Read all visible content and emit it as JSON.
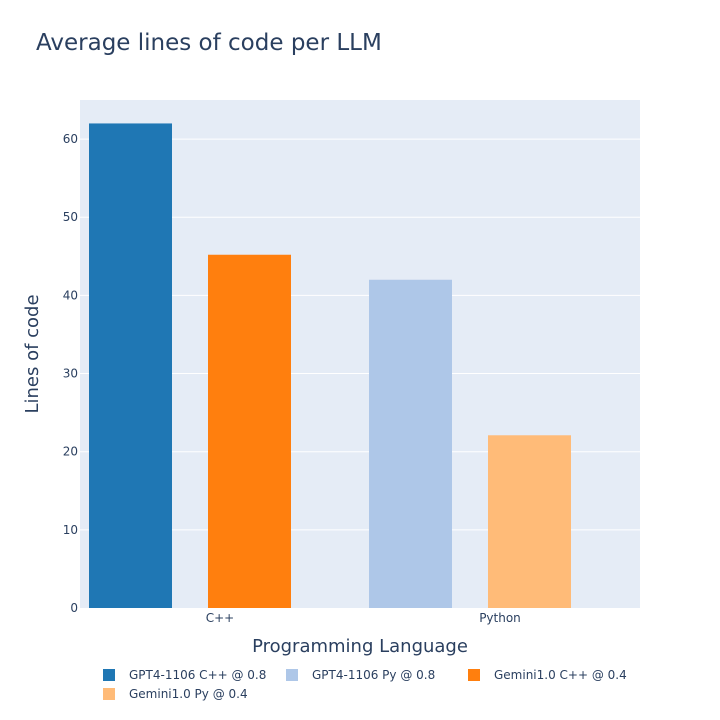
{
  "chart_data": {
    "type": "bar",
    "title": "Average lines of code per LLM",
    "xlabel": "Programming Language",
    "ylabel": "Lines of code",
    "categories": [
      "C++",
      "Python"
    ],
    "ylim": [
      0,
      65
    ],
    "yticks": [
      0,
      10,
      20,
      30,
      40,
      50,
      60
    ],
    "grid": true,
    "legend_position": "bottom",
    "bars": [
      {
        "name": "GPT4-1106 C++ @ 0.8",
        "category": "C++",
        "value": 62,
        "color": "#1f77b4"
      },
      {
        "name": "Gemini1.0 C++ @ 0.4",
        "category": "C++",
        "value": 45.2,
        "color": "#ff7f0e"
      },
      {
        "name": "GPT4-1106 Py @ 0.8",
        "category": "Python",
        "value": 42,
        "color": "#aec7e8"
      },
      {
        "name": "Gemini1.0 Py @ 0.4",
        "category": "Python",
        "value": 22.1,
        "color": "#ffbb78"
      }
    ],
    "legend": [
      {
        "label": "GPT4-1106 C++ @ 0.8",
        "color": "#1f77b4"
      },
      {
        "label": "GPT4-1106 Py @ 0.8",
        "color": "#aec7e8"
      },
      {
        "label": "Gemini1.0 C++ @ 0.4",
        "color": "#ff7f0e"
      },
      {
        "label": "Gemini1.0 Py @ 0.4",
        "color": "#ffbb78"
      }
    ],
    "plot_background": "#e5ecf6"
  }
}
